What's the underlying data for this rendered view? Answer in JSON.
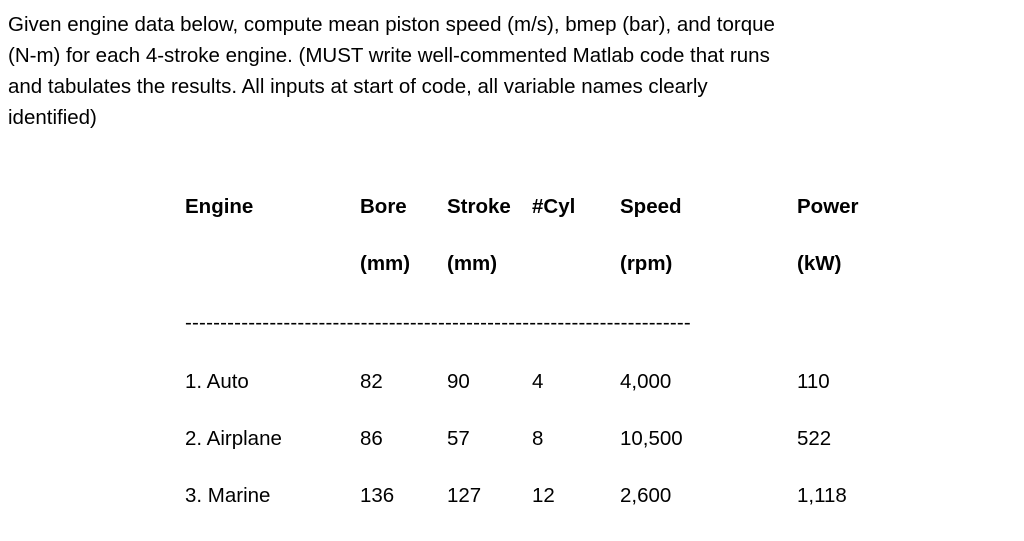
{
  "prompt": {
    "lines": [
      "Given engine data below, compute mean piston speed (m/s), bmep (bar), and torque",
      "(N-m) for each 4-stroke engine.  (MUST write well-commented Matlab code that runs",
      "and tabulates the results.  All inputs at start of code, all variable names clearly",
      "identified)"
    ]
  },
  "table": {
    "headers": {
      "engine": "Engine",
      "bore": "Bore",
      "stroke": "Stroke",
      "cyl": "#Cyl",
      "speed": "Speed",
      "power": "Power"
    },
    "units": {
      "bore": "(mm)",
      "stroke": "(mm)",
      "speed": "(rpm)",
      "power": "(kW)"
    },
    "separator": "------------------------------------------------------------------------",
    "rows": [
      {
        "engine": "1. Auto",
        "bore": "82",
        "stroke": "90",
        "cyl": "4",
        "speed": "4,000",
        "power": "110"
      },
      {
        "engine": "2. Airplane",
        "bore": "86",
        "stroke": "57",
        "cyl": "8",
        "speed": "10,500",
        "power": "522"
      },
      {
        "engine": "3. Marine",
        "bore": "136",
        "stroke": "127",
        "cyl": "12",
        "speed": "2,600",
        "power": "1,118"
      }
    ]
  }
}
